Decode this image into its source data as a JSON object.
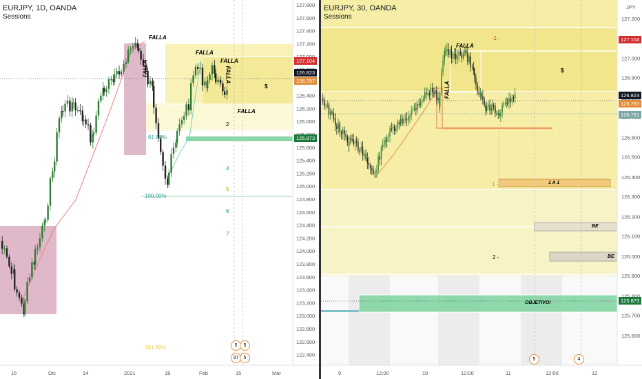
{
  "left_chart": {
    "title": "EURJPY, 1D, OANDA",
    "subtitle": "Sessions",
    "labels": {
      "falla1": "FALLA",
      "falla2": "FALLA",
      "falla3": "FALLA",
      "falla4": "FALLA",
      "falla5": "FALLA",
      "falla_vertical": "FALLA",
      "dollar": "$",
      "fib618": "61.80%",
      "fib100": "100.00%",
      "wave2": "2",
      "wave4": "4",
      "wave5": "5",
      "wave6": "6",
      "wave7": "7",
      "bottom_fib": "161.80%"
    },
    "price_axis": [
      "127.800",
      "127.600",
      "127.400",
      "127.200",
      "127.000",
      "126.800",
      "126.600",
      "126.400",
      "126.200",
      "126.000",
      "125.800",
      "125.600",
      "125.400",
      "125.200",
      "125.000",
      "124.800",
      "124.600",
      "124.400",
      "124.200",
      "124.000",
      "123.800",
      "123.600",
      "123.400",
      "123.200",
      "123.000",
      "122.800",
      "122.600",
      "122.400"
    ],
    "time_axis": [
      "16",
      "Dic",
      "14",
      "2021",
      "18",
      "Feb",
      "15",
      "Mar"
    ],
    "tags": {
      "t1": "127.104",
      "t2": "126.823",
      "t3": "126.797",
      "t4": "125.873"
    },
    "badges": {
      "b1": "5",
      "b2": "5",
      "b3": "0",
      "b4": "1",
      "b5": "37",
      "b6": "5"
    }
  },
  "right_chart": {
    "title": "EURJPY, 30, OANDA",
    "subtitle": "Sessions",
    "currency": "JPY",
    "labels": {
      "falla": "FALLA",
      "falla_vertical": "FALLA",
      "dollar": "$",
      "minus1": "-1 -",
      "one": "1 -",
      "two": "2 -",
      "one_a_one": "1 A 1",
      "be1": "BE",
      "be2": "BE",
      "objetivo": "OBJETIVO!"
    },
    "price_axis": [
      "127.200",
      "127.000",
      "126.800",
      "126.600",
      "126.400",
      "126.200",
      "126.000",
      "125.800",
      "125.600"
    ],
    "price_axis2": [
      "127.100",
      "126.900",
      "126.700",
      "126.500",
      "126.300",
      "126.100",
      "125.900",
      "125.700"
    ],
    "time_axis": [
      "9",
      "12:00",
      "10",
      "12:00",
      "11",
      "12:00",
      "12"
    ],
    "tags": {
      "t1": "127.104",
      "t2": "126.823",
      "t3": "126.797",
      "t4": "126.761",
      "t5": "125.873"
    },
    "badges": {
      "b1": "5",
      "b2": "4"
    }
  },
  "colors": {
    "red_tag": "#d32f2f",
    "black_tag": "#131722",
    "orange_tag": "#e08d3c",
    "teal_tag": "#7aa6a5",
    "green_tag": "#1b7a3a",
    "yellow_zone": "#f4ea8a",
    "pink_zone": "#d7a6bd",
    "green_zone": "#7ed3a0"
  }
}
